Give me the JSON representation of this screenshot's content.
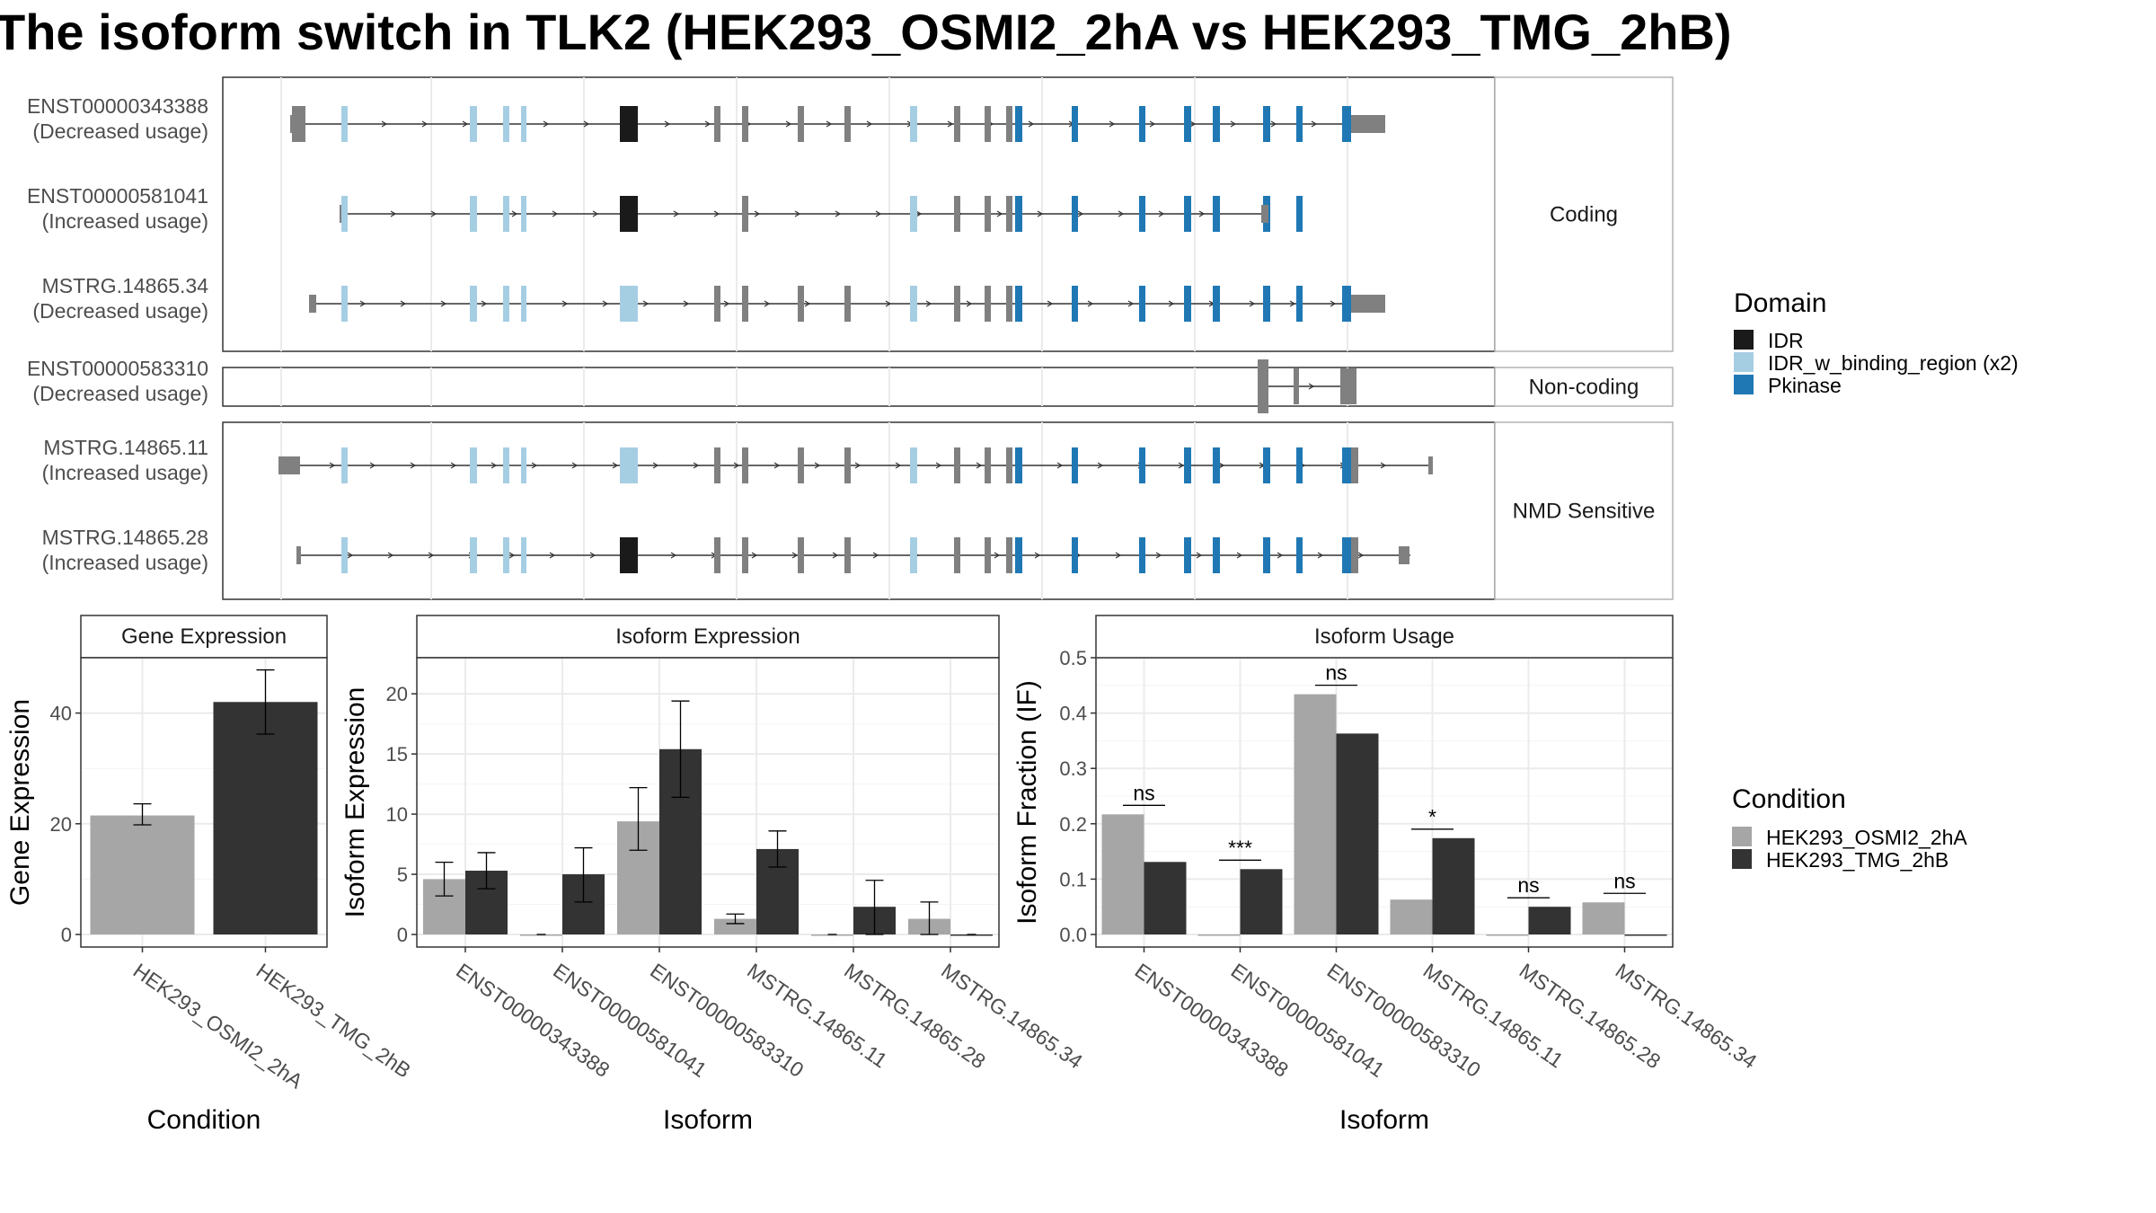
{
  "title": "The isoform switch in TLK2 (HEK293_OSMI2_2hA vs HEK293_TMG_2hB)",
  "colors": {
    "IDR": "#1a1a1a",
    "IDR_w_binding_region": "#a6cee3",
    "Pkinase": "#1f78b4",
    "exon": "#808080",
    "cond_a": "#a6a6a6",
    "cond_b": "#333333"
  },
  "domain_legend": {
    "title": "Domain",
    "items": [
      {
        "label": "IDR",
        "color": "#1a1a1a"
      },
      {
        "label": "IDR_w_binding_region (x2)",
        "color": "#a6cee3"
      },
      {
        "label": "Pkinase",
        "color": "#1f78b4"
      }
    ]
  },
  "condition_legend": {
    "title": "Condition",
    "items": [
      {
        "label": "HEK293_OSMI2_2hA",
        "color": "#a6a6a6"
      },
      {
        "label": "HEK293_TMG_2hB",
        "color": "#333333"
      }
    ]
  },
  "structure": {
    "facets": [
      {
        "label": "Coding",
        "transcripts": [
          {
            "id": "ENST00000343388",
            "usage": "(Decreased usage)"
          },
          {
            "id": "ENST00000581041",
            "usage": "(Increased usage)"
          },
          {
            "id": "MSTRG.14865.34",
            "usage": "(Decreased usage)"
          }
        ]
      },
      {
        "label": "Non-coding",
        "transcripts": [
          {
            "id": "ENST00000583310",
            "usage": "(Decreased usage)"
          }
        ]
      },
      {
        "label": "NMD Sensitive",
        "transcripts": [
          {
            "id": "MSTRG.14865.11",
            "usage": "(Increased usage)"
          },
          {
            "id": "MSTRG.14865.28",
            "usage": "(Increased usage)"
          }
        ]
      }
    ]
  },
  "chart_data": [
    {
      "type": "bar",
      "title": "Gene Expression",
      "xlabel": "Condition",
      "ylabel": "Gene Expression",
      "categories": [
        "HEK293_OSMI2_2hA",
        "HEK293_TMG_2hB"
      ],
      "values": [
        21.5,
        42.0
      ],
      "error_low": [
        19.8,
        36.2
      ],
      "error_high": [
        23.6,
        47.8
      ],
      "ylim": [
        0,
        50
      ],
      "yticks": [
        0,
        20,
        40
      ]
    },
    {
      "type": "bar",
      "title": "Isoform Expression",
      "xlabel": "Isoform",
      "ylabel": "Isoform Expression",
      "categories": [
        "ENST00000343388",
        "ENST00000581041",
        "ENST00000583310",
        "MSTRG.14865.11",
        "MSTRG.14865.28",
        "MSTRG.14865.34"
      ],
      "series": [
        {
          "name": "HEK293_OSMI2_2hA",
          "values": [
            4.6,
            0,
            9.4,
            1.3,
            0,
            1.3
          ],
          "error_low": [
            3.2,
            0,
            7.0,
            0.9,
            0,
            0.0
          ],
          "error_high": [
            6.0,
            0,
            12.2,
            1.7,
            0,
            2.7
          ]
        },
        {
          "name": "HEK293_TMG_2hB",
          "values": [
            5.3,
            5.0,
            15.4,
            7.1,
            2.3,
            0
          ],
          "error_low": [
            3.8,
            2.7,
            11.4,
            5.6,
            0.0,
            0
          ],
          "error_high": [
            6.8,
            7.2,
            19.4,
            8.6,
            4.5,
            0
          ]
        }
      ],
      "ylim": [
        0,
        23
      ],
      "yticks": [
        0,
        5,
        10,
        15,
        20
      ]
    },
    {
      "type": "bar",
      "title": "Isoform Usage",
      "xlabel": "Isoform",
      "ylabel": "Isoform Fraction (IF)",
      "categories": [
        "ENST00000343388",
        "ENST00000581041",
        "ENST00000583310",
        "MSTRG.14865.11",
        "MSTRG.14865.28",
        "MSTRG.14865.34"
      ],
      "series": [
        {
          "name": "HEK293_OSMI2_2hA",
          "values": [
            0.217,
            0,
            0.434,
            0.063,
            0,
            0.058
          ]
        },
        {
          "name": "HEK293_TMG_2hB",
          "values": [
            0.131,
            0.118,
            0.363,
            0.174,
            0.05,
            0
          ]
        }
      ],
      "significance": [
        "ns",
        "***",
        "ns",
        "*",
        "ns",
        "ns"
      ],
      "ylim": [
        0,
        0.5
      ],
      "yticks": [
        0.0,
        0.1,
        0.2,
        0.3,
        0.4,
        0.5
      ]
    }
  ]
}
